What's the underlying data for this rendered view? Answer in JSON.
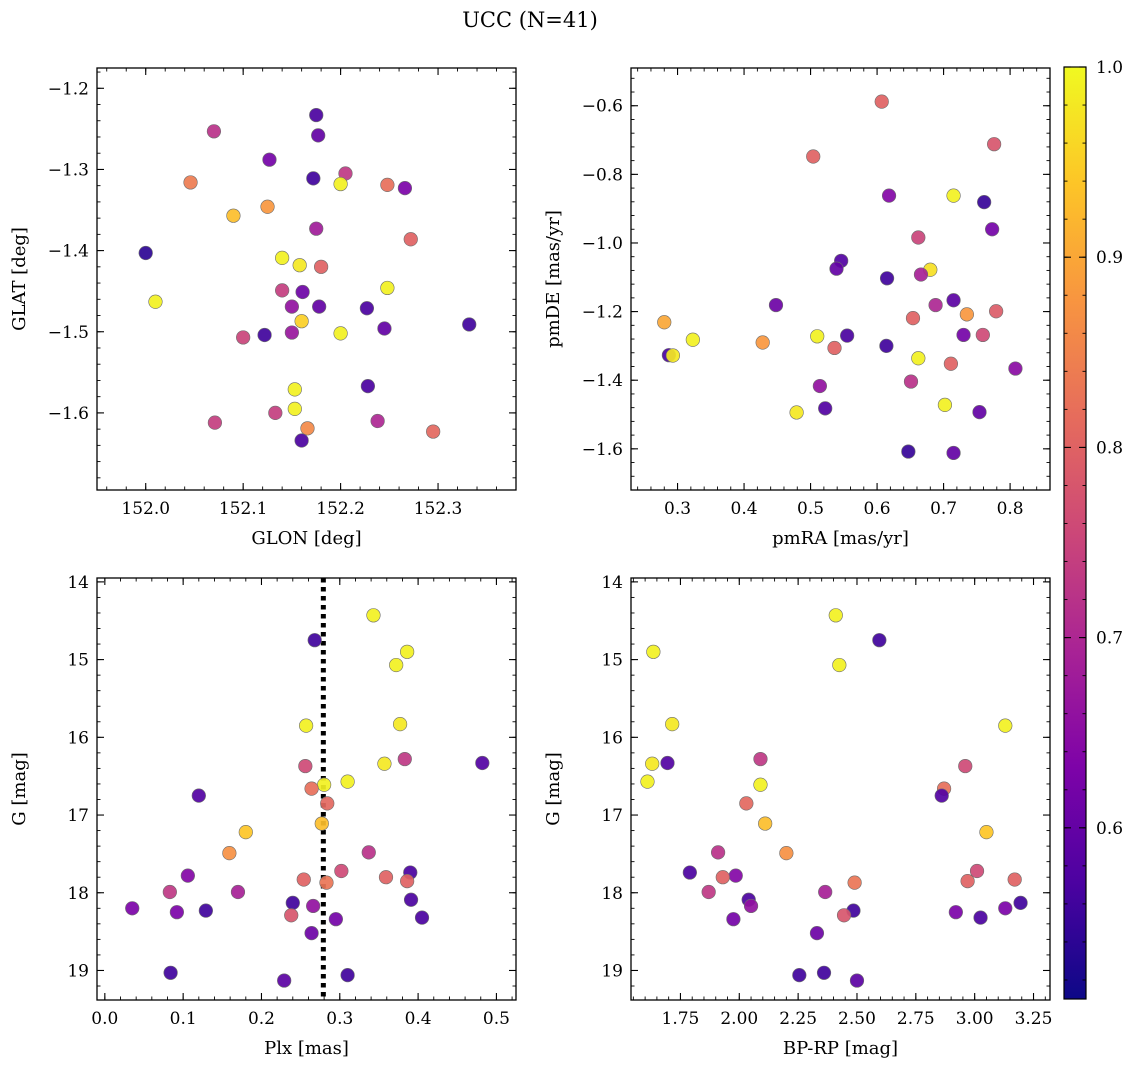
{
  "figure": {
    "title": "UCC (N=41)",
    "colorbar": {
      "range": [
        0.51,
        1.0
      ],
      "ticks": [
        0.6,
        0.7,
        0.8,
        0.9,
        1.0
      ],
      "tick_labels": [
        "0.6",
        "0.7",
        "0.8",
        "0.9",
        "1.0"
      ],
      "colormap": "plasma"
    }
  },
  "chart_data": [
    {
      "type": "scatter",
      "xlabel": "GLON [deg]",
      "ylabel": "GLAT [deg]",
      "xlim": [
        151.95,
        152.38
      ],
      "ylim": [
        -1.695,
        -1.175
      ],
      "xticks": [
        152.0,
        152.1,
        152.2,
        152.3
      ],
      "xtick_labels": [
        "152.0",
        "152.1",
        "152.2",
        "152.3"
      ],
      "yticks": [
        -1.2,
        -1.3,
        -1.4,
        -1.5,
        -1.6
      ],
      "ytick_labels": [
        "−1.2",
        "−1.3",
        "−1.4",
        "−1.5",
        "−1.6"
      ],
      "points": [
        {
          "x": 152.175,
          "y": -1.233,
          "c": 0.57
        },
        {
          "x": 152.07,
          "y": -1.253,
          "c": 0.72
        },
        {
          "x": 152.177,
          "y": -1.258,
          "c": 0.6
        },
        {
          "x": 152.127,
          "y": -1.288,
          "c": 0.62
        },
        {
          "x": 152.205,
          "y": -1.305,
          "c": 0.73
        },
        {
          "x": 152.172,
          "y": -1.311,
          "c": 0.56
        },
        {
          "x": 152.046,
          "y": -1.316,
          "c": 0.84
        },
        {
          "x": 152.2,
          "y": -1.318,
          "c": 0.99
        },
        {
          "x": 152.248,
          "y": -1.319,
          "c": 0.82
        },
        {
          "x": 152.266,
          "y": -1.323,
          "c": 0.63
        },
        {
          "x": 152.125,
          "y": -1.346,
          "c": 0.88
        },
        {
          "x": 152.09,
          "y": -1.357,
          "c": 0.93
        },
        {
          "x": 152.175,
          "y": -1.373,
          "c": 0.68
        },
        {
          "x": 152.272,
          "y": -1.386,
          "c": 0.8
        },
        {
          "x": 152.0,
          "y": -1.403,
          "c": 0.54
        },
        {
          "x": 152.14,
          "y": -1.409,
          "c": 0.99
        },
        {
          "x": 152.158,
          "y": -1.418,
          "c": 0.98
        },
        {
          "x": 152.18,
          "y": -1.42,
          "c": 0.8
        },
        {
          "x": 152.248,
          "y": -1.446,
          "c": 0.99
        },
        {
          "x": 152.14,
          "y": -1.449,
          "c": 0.74
        },
        {
          "x": 152.161,
          "y": -1.451,
          "c": 0.61
        },
        {
          "x": 152.01,
          "y": -1.463,
          "c": 0.99
        },
        {
          "x": 152.15,
          "y": -1.469,
          "c": 0.66
        },
        {
          "x": 152.178,
          "y": -1.469,
          "c": 0.6
        },
        {
          "x": 152.227,
          "y": -1.471,
          "c": 0.57
        },
        {
          "x": 152.16,
          "y": -1.487,
          "c": 0.95
        },
        {
          "x": 152.332,
          "y": -1.491,
          "c": 0.56
        },
        {
          "x": 152.245,
          "y": -1.496,
          "c": 0.6
        },
        {
          "x": 152.2,
          "y": -1.502,
          "c": 0.99
        },
        {
          "x": 152.15,
          "y": -1.501,
          "c": 0.67
        },
        {
          "x": 152.122,
          "y": -1.504,
          "c": 0.56
        },
        {
          "x": 152.1,
          "y": -1.507,
          "c": 0.75
        },
        {
          "x": 152.228,
          "y": -1.567,
          "c": 0.57
        },
        {
          "x": 152.153,
          "y": -1.571,
          "c": 0.99
        },
        {
          "x": 152.153,
          "y": -1.595,
          "c": 0.99
        },
        {
          "x": 152.133,
          "y": -1.6,
          "c": 0.74
        },
        {
          "x": 152.238,
          "y": -1.61,
          "c": 0.7
        },
        {
          "x": 152.071,
          "y": -1.612,
          "c": 0.74
        },
        {
          "x": 152.166,
          "y": -1.619,
          "c": 0.86
        },
        {
          "x": 152.295,
          "y": -1.623,
          "c": 0.81
        },
        {
          "x": 152.16,
          "y": -1.634,
          "c": 0.57
        }
      ]
    },
    {
      "type": "scatter",
      "xlabel": "pmRA [mas/yr]",
      "ylabel": "pmDE [mas/yr]",
      "xlim": [
        0.23,
        0.86
      ],
      "ylim": [
        -1.72,
        -0.49
      ],
      "xticks": [
        0.3,
        0.4,
        0.5,
        0.6,
        0.7,
        0.8
      ],
      "xtick_labels": [
        "0.3",
        "0.4",
        "0.5",
        "0.6",
        "0.7",
        "0.8"
      ],
      "yticks": [
        -0.6,
        -0.8,
        -1.0,
        -1.2,
        -1.4,
        -1.6
      ],
      "ytick_labels": [
        "−0.6",
        "−0.8",
        "−1.0",
        "−1.2",
        "−1.4",
        "−1.6"
      ],
      "points": [
        {
          "x": 0.607,
          "y": -0.588,
          "c": 0.8
        },
        {
          "x": 0.776,
          "y": -0.712,
          "c": 0.78
        },
        {
          "x": 0.504,
          "y": -0.748,
          "c": 0.8
        },
        {
          "x": 0.618,
          "y": -0.862,
          "c": 0.64
        },
        {
          "x": 0.715,
          "y": -0.862,
          "c": 0.99
        },
        {
          "x": 0.761,
          "y": -0.881,
          "c": 0.55
        },
        {
          "x": 0.773,
          "y": -0.96,
          "c": 0.62
        },
        {
          "x": 0.662,
          "y": -0.984,
          "c": 0.75
        },
        {
          "x": 0.546,
          "y": -1.052,
          "c": 0.58
        },
        {
          "x": 0.539,
          "y": -1.075,
          "c": 0.6
        },
        {
          "x": 0.68,
          "y": -1.078,
          "c": 0.97
        },
        {
          "x": 0.666,
          "y": -1.092,
          "c": 0.69
        },
        {
          "x": 0.615,
          "y": -1.103,
          "c": 0.56
        },
        {
          "x": 0.715,
          "y": -1.167,
          "c": 0.59
        },
        {
          "x": 0.448,
          "y": -1.181,
          "c": 0.61
        },
        {
          "x": 0.688,
          "y": -1.181,
          "c": 0.7
        },
        {
          "x": 0.779,
          "y": -1.199,
          "c": 0.79
        },
        {
          "x": 0.654,
          "y": -1.219,
          "c": 0.8
        },
        {
          "x": 0.735,
          "y": -1.208,
          "c": 0.88
        },
        {
          "x": 0.28,
          "y": -1.231,
          "c": 0.9
        },
        {
          "x": 0.73,
          "y": -1.268,
          "c": 0.62
        },
        {
          "x": 0.759,
          "y": -1.268,
          "c": 0.76
        },
        {
          "x": 0.555,
          "y": -1.27,
          "c": 0.57
        },
        {
          "x": 0.51,
          "y": -1.272,
          "c": 0.99
        },
        {
          "x": 0.323,
          "y": -1.282,
          "c": 0.99
        },
        {
          "x": 0.428,
          "y": -1.29,
          "c": 0.88
        },
        {
          "x": 0.614,
          "y": -1.3,
          "c": 0.56
        },
        {
          "x": 0.536,
          "y": -1.306,
          "c": 0.8
        },
        {
          "x": 0.287,
          "y": -1.327,
          "c": 0.57
        },
        {
          "x": 0.293,
          "y": -1.328,
          "c": 0.98
        },
        {
          "x": 0.662,
          "y": -1.336,
          "c": 0.99
        },
        {
          "x": 0.711,
          "y": -1.352,
          "c": 0.8
        },
        {
          "x": 0.808,
          "y": -1.366,
          "c": 0.65
        },
        {
          "x": 0.651,
          "y": -1.404,
          "c": 0.72
        },
        {
          "x": 0.514,
          "y": -1.417,
          "c": 0.66
        },
        {
          "x": 0.702,
          "y": -1.472,
          "c": 0.99
        },
        {
          "x": 0.522,
          "y": -1.482,
          "c": 0.58
        },
        {
          "x": 0.479,
          "y": -1.494,
          "c": 0.98
        },
        {
          "x": 0.754,
          "y": -1.493,
          "c": 0.6
        },
        {
          "x": 0.647,
          "y": -1.608,
          "c": 0.55
        },
        {
          "x": 0.715,
          "y": -1.612,
          "c": 0.6
        }
      ]
    },
    {
      "type": "scatter",
      "xlabel": "Plx [mas]",
      "ylabel": "G [mag]",
      "xlim": [
        -0.01,
        0.525
      ],
      "ylim": [
        19.38,
        13.95
      ],
      "xticks": [
        0.0,
        0.1,
        0.2,
        0.3,
        0.4,
        0.5
      ],
      "xtick_labels": [
        "0.0",
        "0.1",
        "0.2",
        "0.3",
        "0.4",
        "0.5"
      ],
      "yticks": [
        14,
        15,
        16,
        17,
        18,
        19
      ],
      "ytick_labels": [
        "14",
        "15",
        "16",
        "17",
        "18",
        "19"
      ],
      "vline": 0.279,
      "points": [
        {
          "x": 0.343,
          "y": 14.43,
          "c": 0.99
        },
        {
          "x": 0.268,
          "y": 14.75,
          "c": 0.56
        },
        {
          "x": 0.386,
          "y": 14.9,
          "c": 0.99
        },
        {
          "x": 0.372,
          "y": 15.07,
          "c": 0.99
        },
        {
          "x": 0.377,
          "y": 15.83,
          "c": 0.98
        },
        {
          "x": 0.257,
          "y": 15.85,
          "c": 0.99
        },
        {
          "x": 0.383,
          "y": 16.28,
          "c": 0.73
        },
        {
          "x": 0.482,
          "y": 16.33,
          "c": 0.58
        },
        {
          "x": 0.357,
          "y": 16.34,
          "c": 0.98
        },
        {
          "x": 0.256,
          "y": 16.37,
          "c": 0.76
        },
        {
          "x": 0.31,
          "y": 16.57,
          "c": 0.99
        },
        {
          "x": 0.28,
          "y": 16.61,
          "c": 0.99
        },
        {
          "x": 0.264,
          "y": 16.66,
          "c": 0.82
        },
        {
          "x": 0.12,
          "y": 16.75,
          "c": 0.58
        },
        {
          "x": 0.284,
          "y": 16.85,
          "c": 0.81
        },
        {
          "x": 0.277,
          "y": 17.11,
          "c": 0.93
        },
        {
          "x": 0.18,
          "y": 17.22,
          "c": 0.94
        },
        {
          "x": 0.159,
          "y": 17.49,
          "c": 0.87
        },
        {
          "x": 0.337,
          "y": 17.48,
          "c": 0.72
        },
        {
          "x": 0.302,
          "y": 17.72,
          "c": 0.76
        },
        {
          "x": 0.39,
          "y": 17.74,
          "c": 0.57
        },
        {
          "x": 0.106,
          "y": 17.78,
          "c": 0.64
        },
        {
          "x": 0.359,
          "y": 17.8,
          "c": 0.8
        },
        {
          "x": 0.254,
          "y": 17.83,
          "c": 0.8
        },
        {
          "x": 0.386,
          "y": 17.85,
          "c": 0.8
        },
        {
          "x": 0.283,
          "y": 17.87,
          "c": 0.83
        },
        {
          "x": 0.083,
          "y": 17.99,
          "c": 0.73
        },
        {
          "x": 0.17,
          "y": 17.99,
          "c": 0.69
        },
        {
          "x": 0.391,
          "y": 18.09,
          "c": 0.57
        },
        {
          "x": 0.24,
          "y": 18.13,
          "c": 0.56
        },
        {
          "x": 0.266,
          "y": 18.17,
          "c": 0.66
        },
        {
          "x": 0.035,
          "y": 18.2,
          "c": 0.63
        },
        {
          "x": 0.129,
          "y": 18.23,
          "c": 0.56
        },
        {
          "x": 0.092,
          "y": 18.25,
          "c": 0.63
        },
        {
          "x": 0.238,
          "y": 18.29,
          "c": 0.78
        },
        {
          "x": 0.405,
          "y": 18.32,
          "c": 0.57
        },
        {
          "x": 0.295,
          "y": 18.34,
          "c": 0.62
        },
        {
          "x": 0.264,
          "y": 18.52,
          "c": 0.61
        },
        {
          "x": 0.084,
          "y": 19.03,
          "c": 0.56
        },
        {
          "x": 0.31,
          "y": 19.06,
          "c": 0.56
        },
        {
          "x": 0.229,
          "y": 19.13,
          "c": 0.59
        }
      ]
    },
    {
      "type": "scatter",
      "xlabel": "BP-RP [mag]",
      "ylabel": "G [mag]",
      "xlim": [
        1.54,
        3.32
      ],
      "ylim": [
        19.38,
        13.95
      ],
      "xticks": [
        1.75,
        2.0,
        2.25,
        2.5,
        2.75,
        3.0,
        3.25
      ],
      "xtick_labels": [
        "1.75",
        "2.00",
        "2.25",
        "2.50",
        "2.75",
        "3.00",
        "3.25"
      ],
      "yticks": [
        14,
        15,
        16,
        17,
        18,
        19
      ],
      "ytick_labels": [
        "14",
        "15",
        "16",
        "17",
        "18",
        "19"
      ],
      "points": [
        {
          "x": 2.41,
          "y": 14.43,
          "c": 0.99
        },
        {
          "x": 2.595,
          "y": 14.75,
          "c": 0.56
        },
        {
          "x": 1.635,
          "y": 14.9,
          "c": 0.99
        },
        {
          "x": 2.425,
          "y": 15.07,
          "c": 0.99
        },
        {
          "x": 1.715,
          "y": 15.83,
          "c": 0.98
        },
        {
          "x": 3.13,
          "y": 15.85,
          "c": 0.99
        },
        {
          "x": 2.09,
          "y": 16.28,
          "c": 0.73
        },
        {
          "x": 1.695,
          "y": 16.33,
          "c": 0.58
        },
        {
          "x": 1.63,
          "y": 16.34,
          "c": 0.98
        },
        {
          "x": 2.96,
          "y": 16.37,
          "c": 0.76
        },
        {
          "x": 1.61,
          "y": 16.57,
          "c": 0.99
        },
        {
          "x": 2.09,
          "y": 16.61,
          "c": 0.99
        },
        {
          "x": 2.87,
          "y": 16.66,
          "c": 0.82
        },
        {
          "x": 2.86,
          "y": 16.75,
          "c": 0.58
        },
        {
          "x": 2.03,
          "y": 16.85,
          "c": 0.81
        },
        {
          "x": 2.11,
          "y": 17.11,
          "c": 0.93
        },
        {
          "x": 3.05,
          "y": 17.22,
          "c": 0.94
        },
        {
          "x": 2.2,
          "y": 17.49,
          "c": 0.87
        },
        {
          "x": 1.91,
          "y": 17.48,
          "c": 0.72
        },
        {
          "x": 3.01,
          "y": 17.72,
          "c": 0.76
        },
        {
          "x": 1.79,
          "y": 17.74,
          "c": 0.57
        },
        {
          "x": 1.985,
          "y": 17.78,
          "c": 0.64
        },
        {
          "x": 1.93,
          "y": 17.8,
          "c": 0.8
        },
        {
          "x": 3.17,
          "y": 17.83,
          "c": 0.8
        },
        {
          "x": 2.97,
          "y": 17.85,
          "c": 0.8
        },
        {
          "x": 2.49,
          "y": 17.87,
          "c": 0.83
        },
        {
          "x": 2.365,
          "y": 17.99,
          "c": 0.69
        },
        {
          "x": 1.87,
          "y": 17.99,
          "c": 0.73
        },
        {
          "x": 2.04,
          "y": 18.09,
          "c": 0.57
        },
        {
          "x": 3.195,
          "y": 18.13,
          "c": 0.56
        },
        {
          "x": 2.05,
          "y": 18.17,
          "c": 0.66
        },
        {
          "x": 3.13,
          "y": 18.2,
          "c": 0.63
        },
        {
          "x": 2.485,
          "y": 18.23,
          "c": 0.56
        },
        {
          "x": 2.92,
          "y": 18.25,
          "c": 0.63
        },
        {
          "x": 2.445,
          "y": 18.29,
          "c": 0.78
        },
        {
          "x": 3.025,
          "y": 18.32,
          "c": 0.57
        },
        {
          "x": 1.975,
          "y": 18.34,
          "c": 0.62
        },
        {
          "x": 2.33,
          "y": 18.52,
          "c": 0.61
        },
        {
          "x": 2.36,
          "y": 19.03,
          "c": 0.56
        },
        {
          "x": 2.255,
          "y": 19.06,
          "c": 0.56
        },
        {
          "x": 2.5,
          "y": 19.13,
          "c": 0.59
        }
      ]
    }
  ]
}
